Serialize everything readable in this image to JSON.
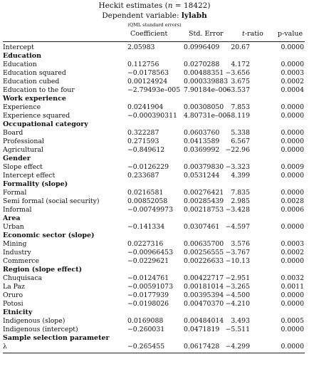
{
  "title": {
    "prefix": "Heckit estimates (",
    "n_symbol": "n",
    "eq": " = ",
    "n_value": "18422",
    "suffix": ")"
  },
  "subtitle": {
    "prefix": "Dependent variable: ",
    "var": "lylabh"
  },
  "note": "(QML standard errors)",
  "columns": {
    "coef": "Coefficient",
    "se": "Std. Error",
    "t_sym": "t",
    "t_rest": "-ratio",
    "p": "p-value"
  },
  "blocks": [
    {
      "rows": [
        {
          "label": "Intercept",
          "coef": "2.05983",
          "se": "0.0996409",
          "t": "20.67",
          "p": "0.0000"
        }
      ]
    },
    {
      "section": "Education",
      "rows": [
        {
          "label": "Education",
          "coef": "0.112756",
          "se": "0.0270288",
          "t": "4.172",
          "p": "0.0000"
        },
        {
          "label": "Education squared",
          "coef": "−0.0178563",
          "se": "0.00488351",
          "t": "−3.656",
          "p": "0.0003"
        },
        {
          "label": "Education cubed",
          "coef": "0.00124924",
          "se": "0.000339883",
          "t": "3.675",
          "p": "0.0002"
        },
        {
          "label": "Education to the four",
          "coef": "−2.79493e–005",
          "se": "7.90184e–006",
          "t": "−3.537",
          "p": "0.0004"
        }
      ]
    },
    {
      "section": "Work experience",
      "rows": [
        {
          "label": "Experience",
          "coef": "0.0241904",
          "se": "0.00308050",
          "t": "7.853",
          "p": "0.0000"
        },
        {
          "label": "Experience squared",
          "coef": "−0.000390311",
          "se": "4.80731e–005",
          "t": "−8.119",
          "p": "0.0000"
        }
      ]
    },
    {
      "section": "Occupational category",
      "rows": [
        {
          "label": "Board",
          "coef": "0.322287",
          "se": "0.0603760",
          "t": "5.338",
          "p": "0.0000"
        },
        {
          "label": "Professional",
          "coef": "0.271593",
          "se": "0.0413589",
          "t": "6.567",
          "p": "0.0000"
        },
        {
          "label": "Agricultural",
          "coef": "−0.849612",
          "se": "0.0369992",
          "t": "−22.96",
          "p": "0.0000"
        }
      ]
    },
    {
      "section": "Gender",
      "rows": [
        {
          "label": "Slope effect",
          "coef": "−0.0126229",
          "se": "0.00379830",
          "t": "−3.323",
          "p": "0.0009"
        },
        {
          "label": "Intercept effect",
          "coef": "0.233687",
          "se": "0.0531244",
          "t": "4.399",
          "p": "0.0000"
        }
      ]
    },
    {
      "section": "Formality (slope)",
      "rows": [
        {
          "label": "Formal",
          "coef": "0.0216581",
          "se": "0.00276421",
          "t": "7.835",
          "p": "0.0000"
        },
        {
          "label": "Semi formal (social security)",
          "coef": "0.00852058",
          "se": "0.00285439",
          "t": "2.985",
          "p": "0.0028"
        },
        {
          "label": "Informal",
          "coef": "−0.00749973",
          "se": "0.00218753",
          "t": "−3.428",
          "p": "0.0006"
        }
      ]
    },
    {
      "section": "Area",
      "rows": [
        {
          "label": "Urban",
          "coef": "−0.141334",
          "se": "0.0307461",
          "t": "−4.597",
          "p": "0.0000"
        }
      ]
    },
    {
      "section": "Economic sector (slope)",
      "rows": [
        {
          "label": "Mining",
          "coef": "0.0227316",
          "se": "0.00635700",
          "t": "3.576",
          "p": "0.0003"
        },
        {
          "label": "Industry",
          "coef": "−0.00966453",
          "se": "0.00256555",
          "t": "−3.767",
          "p": "0.0002"
        },
        {
          "label": "Commerce",
          "coef": "−0.0229621",
          "se": "0.00226633",
          "t": "−10.13",
          "p": "0.0000"
        }
      ]
    },
    {
      "section": "Region (slope effect)",
      "rows": [
        {
          "label": "Chuquisaca",
          "coef": "−0.0124761",
          "se": "0.00422717",
          "t": "−2.951",
          "p": "0.0032"
        },
        {
          "label": "La Paz",
          "coef": "−0.00591073",
          "se": "0.00181014",
          "t": "−3.265",
          "p": "0.0011"
        },
        {
          "label": "Oruro",
          "coef": "−0.0177939",
          "se": "0.00395394",
          "t": "−4.500",
          "p": "0.0000"
        },
        {
          "label": "Potosi",
          "coef": "−0.0198026",
          "se": "0.00470370",
          "t": "−4.210",
          "p": "0.0000"
        }
      ]
    },
    {
      "section": "Etnicity",
      "rows": [
        {
          "label": "Indigenous (slope)",
          "coef": "0.0169088",
          "se": "0.00484014",
          "t": "3.493",
          "p": "0.0005"
        },
        {
          "label": "Indigenous (intercept)",
          "coef": "−0.260031",
          "se": "0.0471819",
          "t": "−5.511",
          "p": "0.0000"
        }
      ]
    },
    {
      "section": "Sample selection parameter",
      "rows": [
        {
          "label": "λ",
          "coef": "−0.265455",
          "se": "0.0617428",
          "t": "−4.299",
          "p": "0.0000"
        }
      ]
    }
  ]
}
